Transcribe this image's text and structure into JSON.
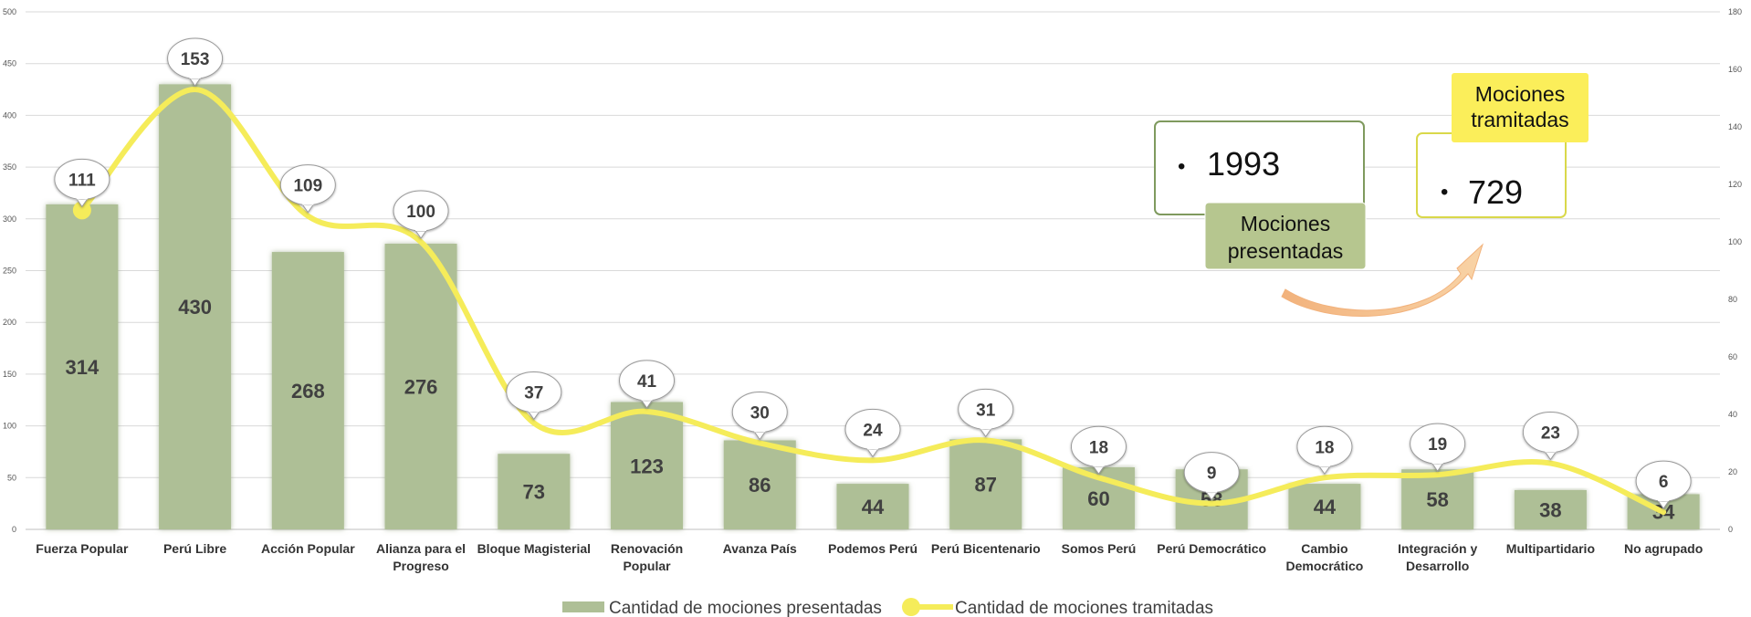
{
  "chart_data": {
    "type": "bar",
    "categories": [
      "Fuerza Popular",
      "Perú Libre",
      "Acción Popular",
      "Alianza para el Progreso",
      "Bloque Magisterial",
      "Renovación Popular",
      "Avanza País",
      "Podemos Perú",
      "Perú Bicentenario",
      "Somos Perú",
      "Perú Democrático",
      "Cambio Democrático",
      "Integración y Desarrollo",
      "Multipartidario",
      "No agrupado"
    ],
    "category_lines": [
      [
        "Fuerza Popular"
      ],
      [
        "Perú Libre"
      ],
      [
        "Acción Popular"
      ],
      [
        "Alianza para el",
        "Progreso"
      ],
      [
        "Bloque Magisterial"
      ],
      [
        "Renovación",
        "Popular"
      ],
      [
        "Avanza País"
      ],
      [
        "Podemos Perú"
      ],
      [
        "Perú Bicentenario"
      ],
      [
        "Somos Perú"
      ],
      [
        "Perú Democrático"
      ],
      [
        "Cambio",
        "Democrático"
      ],
      [
        "Integración y",
        "Desarrollo"
      ],
      [
        "Multipartidario"
      ],
      [
        "No agrupado"
      ]
    ],
    "series": [
      {
        "name": "Cantidad de mociones presentadas",
        "type": "bar",
        "axis": "left",
        "color": "#aebf96",
        "values": [
          314,
          430,
          268,
          276,
          73,
          123,
          86,
          44,
          87,
          60,
          58,
          44,
          58,
          38,
          34
        ]
      },
      {
        "name": "Cantidad de mociones tramitadas",
        "type": "line",
        "axis": "right",
        "color": "#f5ec5a",
        "values": [
          111,
          153,
          109,
          100,
          37,
          41,
          30,
          24,
          31,
          18,
          9,
          18,
          19,
          23,
          6
        ]
      }
    ],
    "y_left": {
      "min": 0,
      "max": 500,
      "ticks": [
        0,
        50,
        100,
        150,
        200,
        250,
        300,
        350,
        400,
        450,
        500
      ]
    },
    "y_right": {
      "min": 0,
      "max": 180,
      "ticks": [
        0,
        20,
        40,
        60,
        80,
        100,
        120,
        140,
        160,
        180
      ]
    },
    "grid": true,
    "legend": "bottom-center"
  },
  "summary": {
    "presented": {
      "value": "1993",
      "label_line1": "Mociones",
      "label_line2": "presentadas"
    },
    "processed": {
      "value": "729",
      "label_line1": "Mociones",
      "label_line2": "tramitadas"
    },
    "bullet": "•"
  },
  "colors": {
    "bar": "#aebf96",
    "line": "#f5ec5a",
    "presented_box_border": "#7f9a5e",
    "processed_box_border": "#d9d84a",
    "processed_label_bg": "#fbee5a",
    "arrow": "#f5c08e",
    "grid": "#d9d9d9"
  }
}
